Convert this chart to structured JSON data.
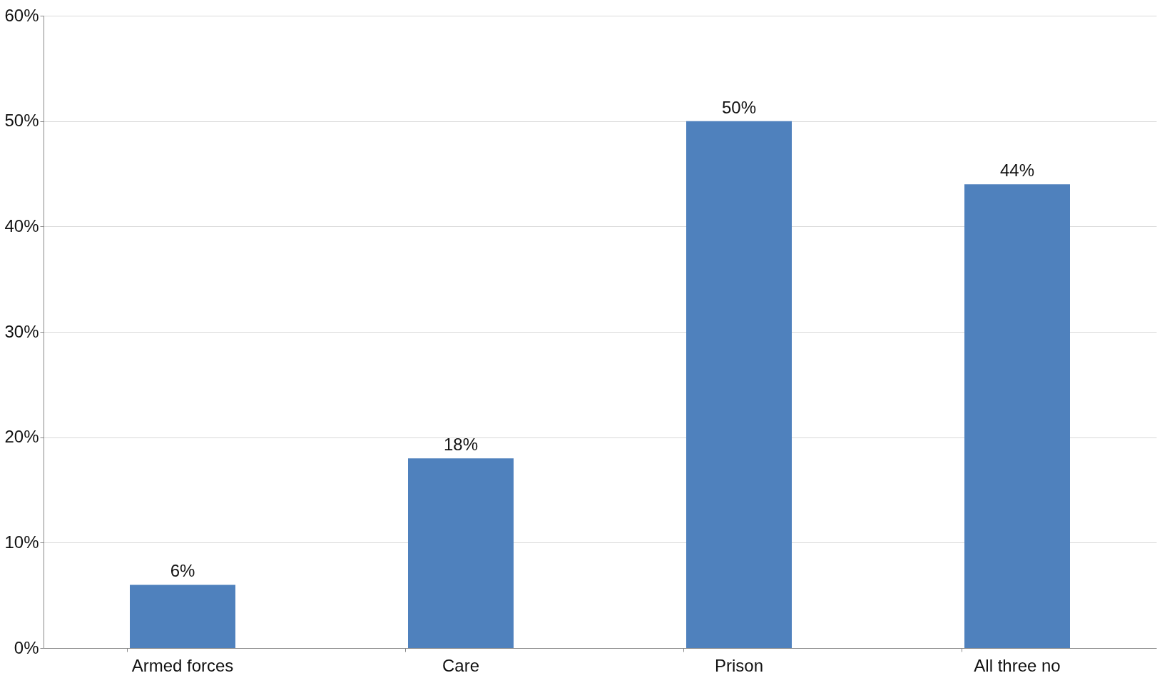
{
  "chart_data": {
    "type": "bar",
    "categories": [
      "Armed forces",
      "Care",
      "Prison",
      "All three no"
    ],
    "values": [
      6,
      18,
      50,
      44
    ],
    "value_labels": [
      "6%",
      "18%",
      "50%",
      "44%"
    ],
    "color": "#4f81bd",
    "ylim": [
      0,
      60
    ],
    "yticks": [
      {
        "value": 0,
        "label": "0%"
      },
      {
        "value": 10,
        "label": "10%"
      },
      {
        "value": 20,
        "label": "20%"
      },
      {
        "value": 30,
        "label": "30%"
      },
      {
        "value": 40,
        "label": "40%"
      },
      {
        "value": 50,
        "label": "50%"
      },
      {
        "value": 60,
        "label": "60%"
      }
    ],
    "grid": "y"
  }
}
